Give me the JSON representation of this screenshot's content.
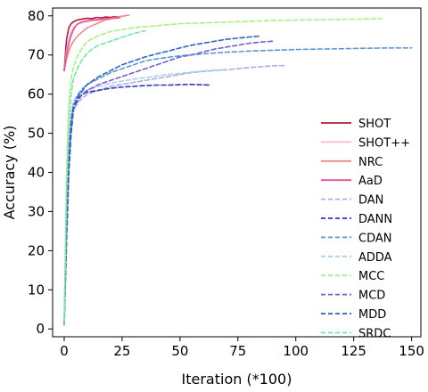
{
  "chart_data": {
    "type": "line",
    "title": "",
    "xlabel": "Iteration (*100)",
    "ylabel": "Accuracy (%)",
    "xlim": [
      -5,
      154
    ],
    "ylim": [
      -2,
      82
    ],
    "xticks": [
      0,
      25,
      50,
      75,
      100,
      125,
      150
    ],
    "yticks": [
      0,
      10,
      20,
      30,
      40,
      50,
      60,
      70,
      80
    ],
    "grid": false,
    "legend_position": "bottom-right",
    "series": [
      {
        "name": "SHOT",
        "color": "#b01d35",
        "dash": "solid",
        "x": [
          0,
          1,
          2,
          3,
          4,
          5,
          6,
          8,
          10,
          12,
          14,
          16,
          18,
          20,
          22,
          24
        ],
        "y": [
          66,
          74,
          77,
          78,
          78.5,
          78.8,
          79,
          79.2,
          79.4,
          79.3,
          79.6,
          79.5,
          79.7,
          79.6,
          79.8,
          79.7
        ]
      },
      {
        "name": "SHOT++",
        "color": "#f7b6dc",
        "dash": "solid",
        "x": [
          0,
          1,
          2,
          3,
          4,
          5,
          6,
          8,
          10,
          12,
          14,
          16,
          18,
          20
        ],
        "y": [
          66,
          71,
          74,
          76,
          77,
          77.5,
          78,
          78.3,
          78.5,
          78.7,
          78.8,
          78.9,
          79,
          79
        ]
      },
      {
        "name": "NRC",
        "color": "#ee8b8b",
        "dash": "solid",
        "x": [
          0,
          1,
          2,
          3,
          4,
          6,
          8,
          10,
          12,
          14,
          16,
          18,
          20,
          22,
          24,
          26,
          28
        ],
        "y": [
          66,
          69,
          71,
          72.5,
          73.5,
          75,
          76,
          77,
          77.5,
          78,
          78.5,
          79,
          79.3,
          79.6,
          79.8,
          80,
          80.2
        ]
      },
      {
        "name": "AaD",
        "color": "#ee4e9a",
        "dash": "solid",
        "x": [
          0,
          1,
          2,
          3,
          4,
          5,
          6,
          7,
          8,
          10,
          12,
          14,
          16,
          18,
          20,
          22,
          24
        ],
        "y": [
          66,
          70,
          73,
          75,
          76.5,
          77.5,
          78,
          78.3,
          78.5,
          78.8,
          79,
          79,
          79.2,
          79.3,
          79.4,
          79.4,
          79.5
        ]
      },
      {
        "name": "DAN",
        "color": "#b4a9e3",
        "dash": "dash",
        "x": [
          0,
          1,
          2,
          3,
          4,
          6,
          8,
          10,
          15,
          20,
          25,
          30,
          35,
          40,
          45,
          50,
          55,
          60,
          65,
          70,
          75,
          80,
          85,
          90,
          95
        ],
        "y": [
          2,
          25,
          42,
          52,
          56,
          58,
          59,
          60,
          61,
          62,
          62.5,
          63,
          63.5,
          64,
          64.5,
          65,
          65.5,
          65.8,
          66,
          66.2,
          66.5,
          66.8,
          67,
          67.2,
          67.3
        ]
      },
      {
        "name": "DANN",
        "color": "#2d34c6",
        "dash": "dash",
        "x": [
          0,
          1,
          2,
          3,
          4,
          6,
          8,
          10,
          15,
          20,
          25,
          30,
          35,
          40,
          45,
          50,
          55,
          60,
          63
        ],
        "y": [
          1,
          22,
          40,
          50,
          56,
          59,
          60,
          60.5,
          61,
          61.5,
          61.8,
          62,
          62.2,
          62.3,
          62.3,
          62.4,
          62.5,
          62.4,
          62.3
        ]
      },
      {
        "name": "CDAN",
        "color": "#5b97d8",
        "dash": "dash",
        "x": [
          0,
          1,
          2,
          3,
          4,
          6,
          8,
          10,
          15,
          20,
          25,
          30,
          35,
          40,
          50,
          60,
          70,
          80,
          90,
          100,
          110,
          120,
          130,
          140,
          150
        ],
        "y": [
          2,
          28,
          45,
          54,
          58,
          60,
          61.5,
          62.5,
          64,
          65.5,
          66.5,
          67.5,
          68.5,
          69,
          69.8,
          70.3,
          70.7,
          71,
          71.2,
          71.4,
          71.5,
          71.6,
          71.7,
          71.8,
          71.8
        ]
      },
      {
        "name": "ADDA",
        "color": "#a8cfee",
        "dash": "dash",
        "x": [
          0,
          1,
          2,
          3,
          4,
          6,
          8,
          10,
          15,
          20,
          25,
          30,
          35,
          40,
          45,
          50,
          55,
          60,
          65,
          70
        ],
        "y": [
          2,
          30,
          47,
          55,
          58,
          59.5,
          60.5,
          61,
          62,
          62.8,
          63.3,
          63.8,
          64.2,
          64.6,
          65,
          65.3,
          65.6,
          65.9,
          66.1,
          66.3
        ]
      },
      {
        "name": "MCC",
        "color": "#a6f283",
        "dash": "dash",
        "x": [
          0,
          1,
          2,
          3,
          4,
          6,
          8,
          10,
          15,
          20,
          25,
          30,
          40,
          50,
          60,
          70,
          80,
          90,
          100,
          110,
          120,
          130,
          137
        ],
        "y": [
          2,
          40,
          58,
          64,
          67,
          70,
          72,
          73.5,
          75,
          76,
          76.5,
          77,
          77.5,
          78,
          78.2,
          78.4,
          78.6,
          78.8,
          78.9,
          79,
          79.1,
          79.2,
          79.3
        ]
      },
      {
        "name": "MCD",
        "color": "#6c63d8",
        "dash": "dash",
        "x": [
          0,
          1,
          2,
          3,
          4,
          6,
          8,
          10,
          15,
          20,
          25,
          30,
          35,
          40,
          45,
          50,
          55,
          60,
          65,
          70,
          75,
          80,
          85,
          90
        ],
        "y": [
          1,
          24,
          42,
          52,
          56,
          58.5,
          60,
          61,
          62.5,
          63.5,
          64.5,
          65.5,
          66.5,
          67.5,
          68.5,
          69.5,
          70,
          70.8,
          71.5,
          72,
          72.5,
          73,
          73.3,
          73.5
        ]
      },
      {
        "name": "MDD",
        "color": "#2c62c8",
        "dash": "dash",
        "x": [
          0,
          1,
          2,
          3,
          4,
          6,
          8,
          10,
          15,
          20,
          25,
          30,
          35,
          40,
          45,
          50,
          55,
          60,
          65,
          70,
          75,
          80,
          84
        ],
        "y": [
          1,
          26,
          44,
          53,
          57,
          59.5,
          61,
          62.5,
          64.5,
          66,
          67.5,
          68.5,
          69.5,
          70.3,
          71,
          71.8,
          72.5,
          73,
          73.5,
          74,
          74.3,
          74.6,
          74.8
        ]
      },
      {
        "name": "SRDC",
        "color": "#73e8a4",
        "dash": "dash",
        "x": [
          0,
          1,
          2,
          3,
          4,
          6,
          8,
          10,
          12,
          15,
          20,
          25,
          30,
          35
        ],
        "y": [
          1,
          35,
          52,
          60,
          64,
          67,
          69,
          70.5,
          71.5,
          72.5,
          73.5,
          74.5,
          75.5,
          76.2
        ]
      }
    ]
  }
}
